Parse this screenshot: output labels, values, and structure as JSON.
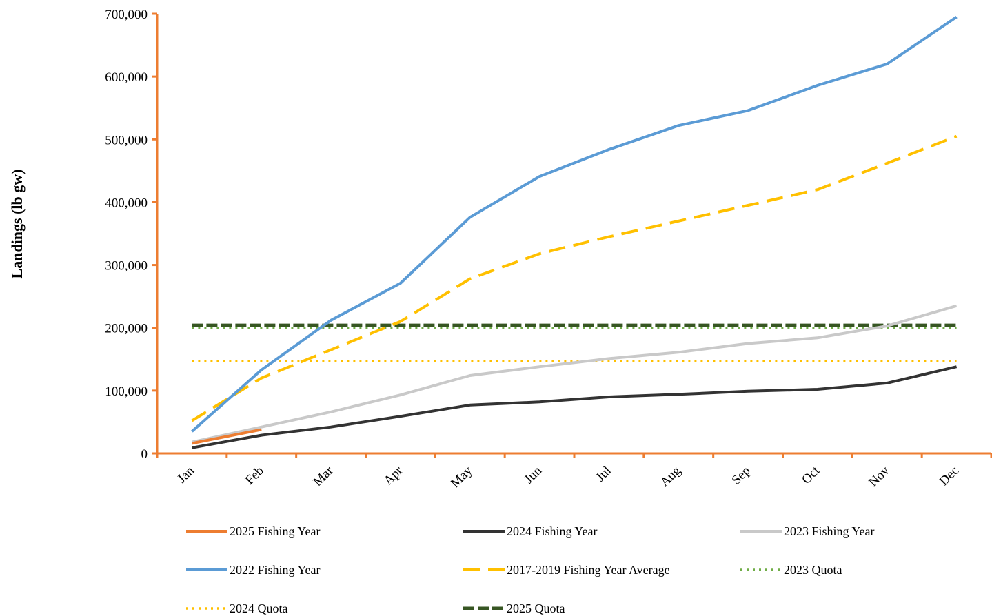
{
  "chart_data": {
    "type": "line",
    "title": "",
    "xlabel": "",
    "ylabel": "Landings (lb gw)",
    "ylim": [
      0,
      700000
    ],
    "y_ticks": [
      0,
      100000,
      200000,
      300000,
      400000,
      500000,
      600000,
      700000
    ],
    "y_tick_labels": [
      "0",
      "100,000",
      "200,000",
      "300,000",
      "400,000",
      "500,000",
      "600,000",
      "700,000"
    ],
    "categories": [
      "Jan",
      "Feb",
      "Mar",
      "Apr",
      "May",
      "Jun",
      "Jul",
      "Aug",
      "Sep",
      "Oct",
      "Nov",
      "Dec"
    ],
    "axis_color": "#ED7D31",
    "grid": false,
    "legend_position": "bottom",
    "series": [
      {
        "name": "2025 Fishing Year",
        "color": "#ED7D31",
        "style": "solid",
        "values": [
          16000,
          38000,
          null,
          null,
          null,
          null,
          null,
          null,
          null,
          null,
          null,
          null
        ]
      },
      {
        "name": "2024 Fishing Year",
        "color": "#333333",
        "style": "solid",
        "values": [
          9000,
          29000,
          42000,
          59000,
          77000,
          82000,
          90000,
          94000,
          99000,
          102000,
          112000,
          138000
        ]
      },
      {
        "name": "2023 Fishing Year",
        "color": "#C9C9C9",
        "style": "solid",
        "values": [
          18000,
          42000,
          66000,
          93000,
          124000,
          138000,
          151000,
          161000,
          175000,
          184000,
          203000,
          235000
        ]
      },
      {
        "name": "2022 Fishing Year",
        "color": "#5B9BD5",
        "style": "solid",
        "values": [
          35000,
          133000,
          212000,
          271000,
          376000,
          441000,
          484000,
          522000,
          546000,
          586000,
          620000,
          695000
        ]
      },
      {
        "name": "2017-2019 Fishing Year Average",
        "color": "#FFC000",
        "style": "dashed",
        "values": [
          52000,
          120000,
          165000,
          210000,
          278000,
          318000,
          345000,
          370000,
          395000,
          420000,
          462000,
          505000
        ]
      },
      {
        "name": "2023 Quota",
        "color": "#70AD47",
        "style": "dotted",
        "values": [
          200000,
          200000,
          200000,
          200000,
          200000,
          200000,
          200000,
          200000,
          200000,
          200000,
          200000,
          200000
        ]
      },
      {
        "name": "2024 Quota",
        "color": "#FFC000",
        "style": "dotted",
        "values": [
          147000,
          147000,
          147000,
          147000,
          147000,
          147000,
          147000,
          147000,
          147000,
          147000,
          147000,
          147000
        ]
      },
      {
        "name": "2025 Quota",
        "color": "#375623",
        "style": "longdash",
        "values": [
          204000,
          204000,
          204000,
          204000,
          204000,
          204000,
          204000,
          204000,
          204000,
          204000,
          204000,
          204000
        ]
      }
    ]
  }
}
